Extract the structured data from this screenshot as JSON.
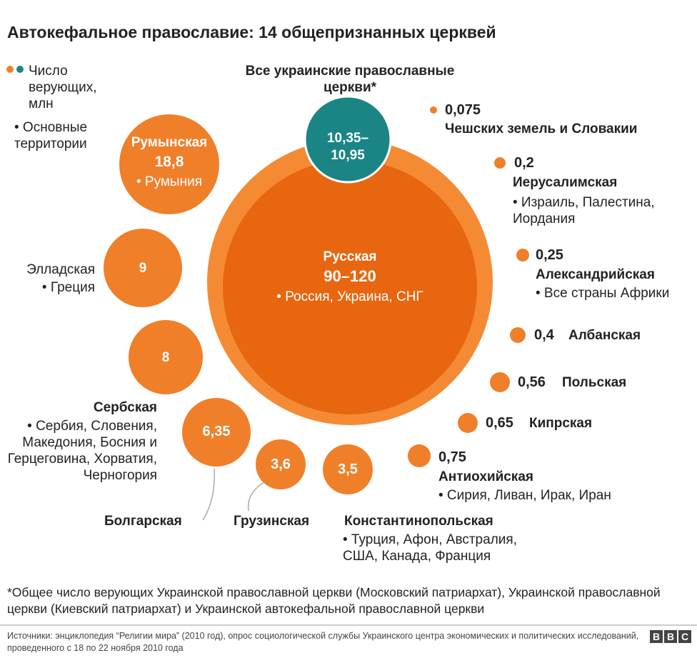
{
  "title": "Автокефальное православие: 14 общепризнанных церквей",
  "legend": {
    "count": "Число верующих, млн",
    "territories": "• Основные территории"
  },
  "ukraine": {
    "name": "Все украинские православные церкви*",
    "value": "10,35–10,95"
  },
  "churches": [
    {
      "name": "Русская",
      "value": "90–120",
      "territories": "• Россия, Украина, СНГ"
    },
    {
      "name": "Румынская",
      "value": "18,8",
      "territories": "• Румыния"
    },
    {
      "name": "Элладская",
      "value": "9",
      "territories": "• Греция"
    },
    {
      "name": "Сербская",
      "value": "8",
      "territories": "• Сербия, Словения, Македония, Босния и Герцеговина, Хорватия, Черногория"
    },
    {
      "name": "Болгарская",
      "value": "6,35"
    },
    {
      "name": "Грузинская",
      "value": "3,6"
    },
    {
      "name": "Константинопольская",
      "value": "3,5",
      "territories": "• Турция, Афон, Австралия, США, Канада, Франция"
    },
    {
      "name": "Антиохийская",
      "value": "0,75",
      "territories": "• Сирия, Ливан, Ирак, Иран"
    },
    {
      "name": "Кипрская",
      "value": "0,65"
    },
    {
      "name": "Польская",
      "value": "0,56"
    },
    {
      "name": "Албанская",
      "value": "0,4"
    },
    {
      "name": "Александрийская",
      "value": "0,25",
      "territories": "• Все страны Африки"
    },
    {
      "name": "Иерусалимская",
      "value": "0,2",
      "territories": "• Израиль, Палестина, Иордания"
    },
    {
      "name": "Чешских земель и Словакии",
      "value": "0,075"
    }
  ],
  "footnote": "*Общее число верующих Украинской православной церкви (Московский патриархат), Украинской православной церкви (Киевский патриархат) и Украинской автокефальной православной церкви",
  "source": "Источники: энциклопедия “Религии мира” (2010 год), опрос социологической службы Украинского центра экономических и политических исследований, проведенного с 18 по 22 ноября 2010 года",
  "logo": [
    "B",
    "B",
    "C"
  ]
}
